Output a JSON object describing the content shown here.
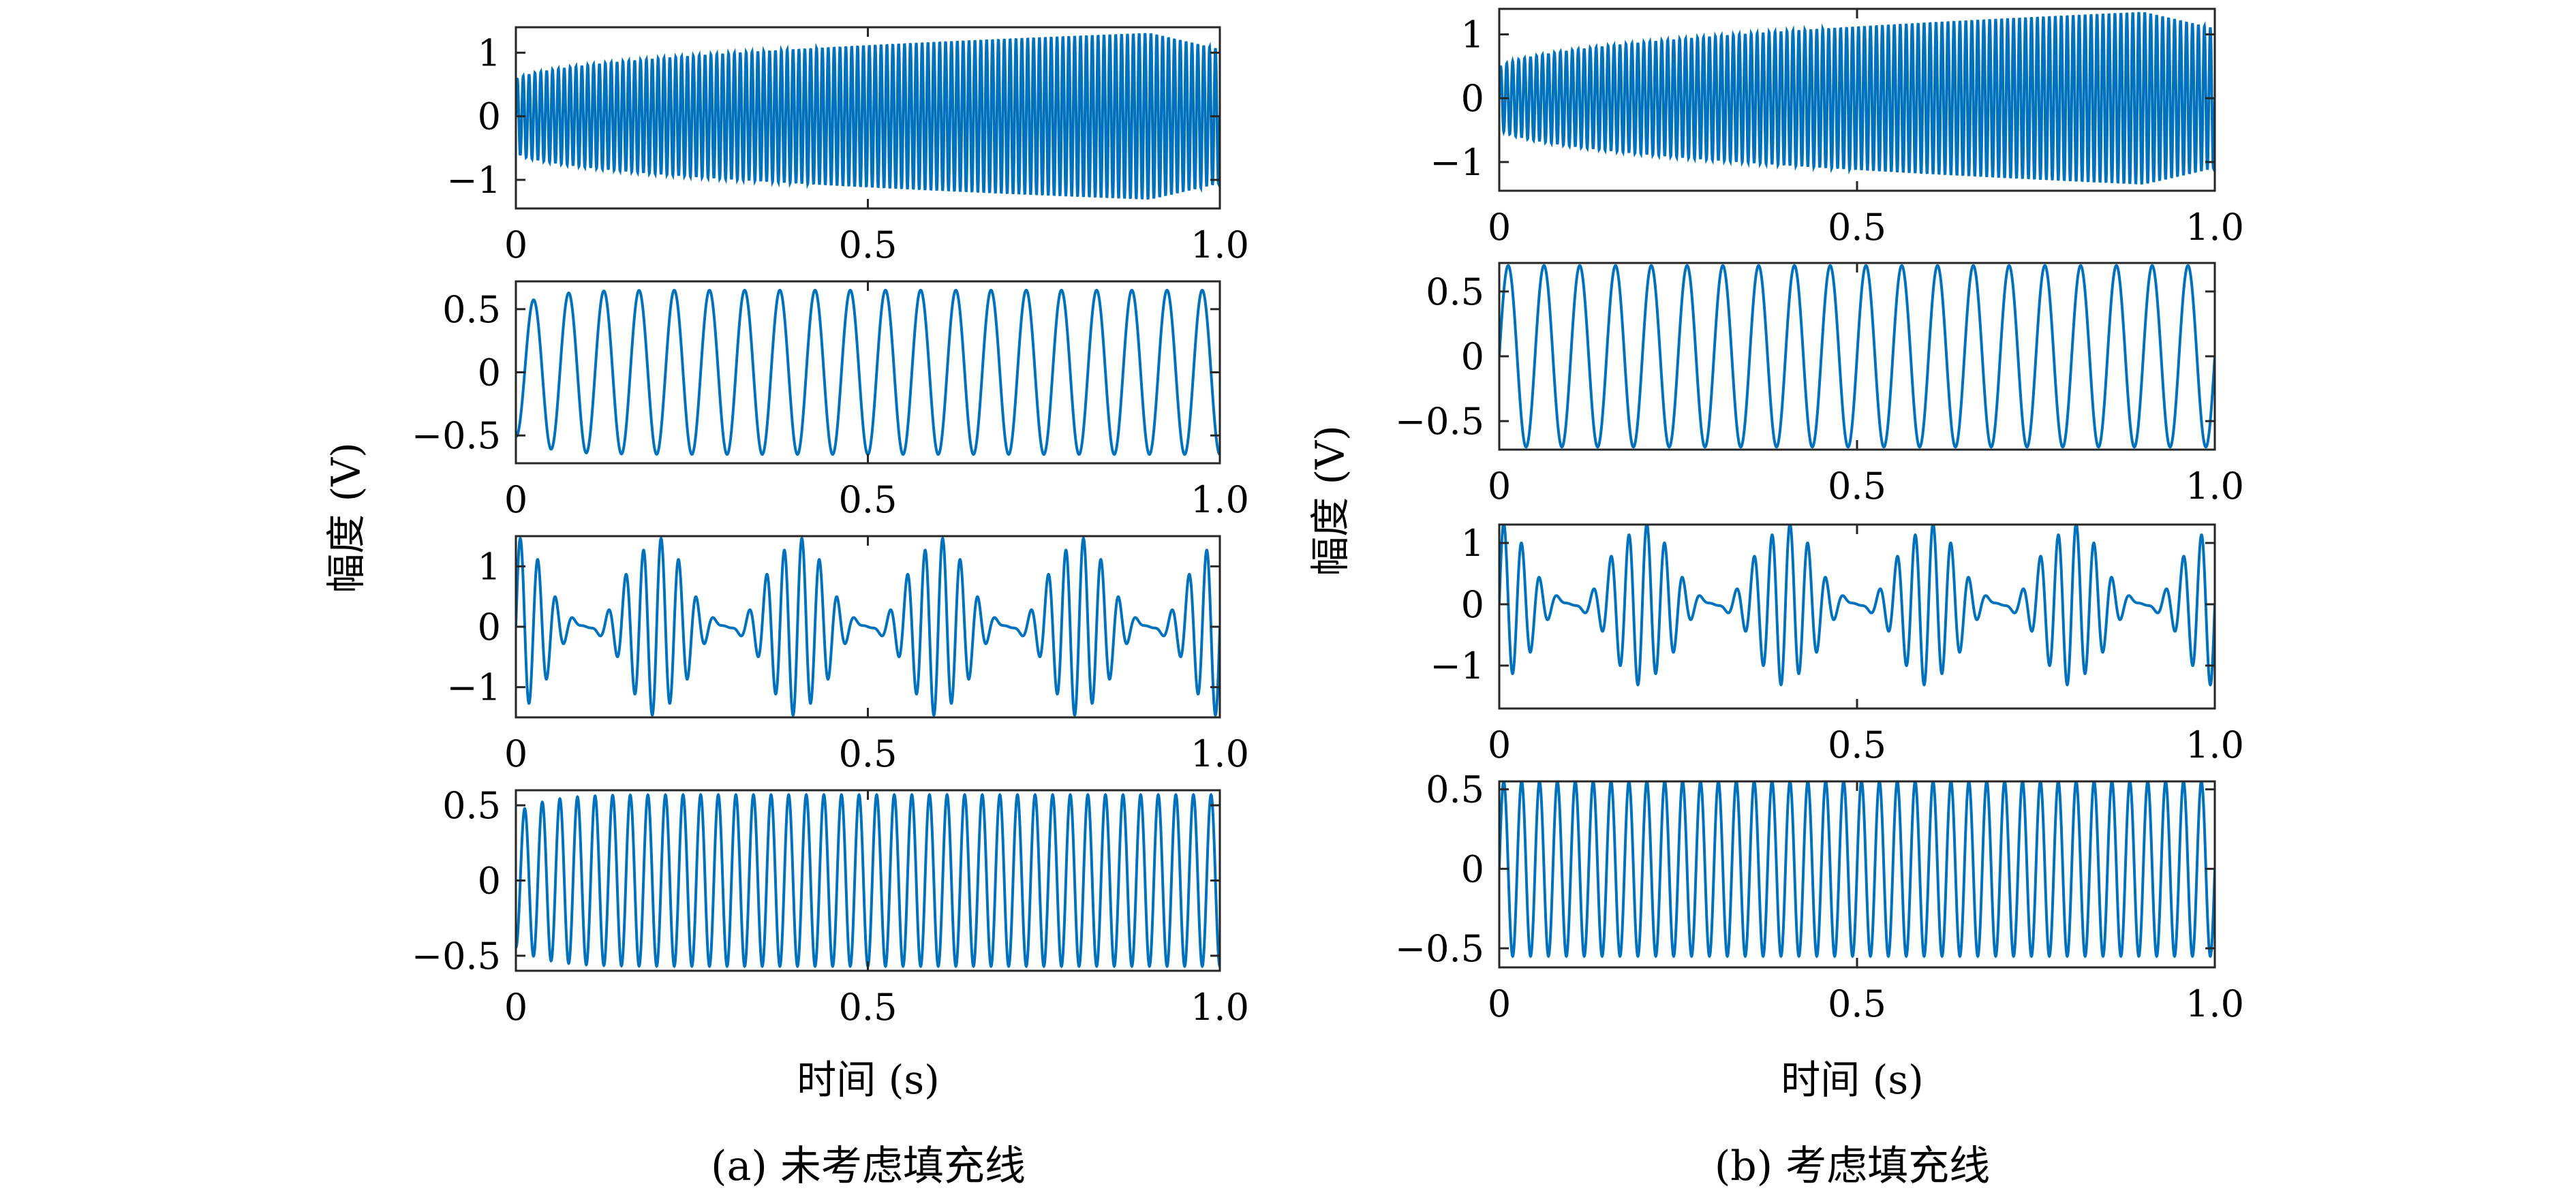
{
  "figure": {
    "panels": [
      {
        "id": "a",
        "caption": "(a) 未考虑填充线",
        "ylabel": "幅度 (V)",
        "xlabel": "时间 (s)"
      },
      {
        "id": "b",
        "caption": "(b) 考虑填充线",
        "ylabel": "幅度 (V)",
        "xlabel": "时间 (s)"
      }
    ]
  },
  "chart_data": [
    {
      "type": "line",
      "panel": "a",
      "subplot": 1,
      "description": "growing-amplitude high-frequency oscillation",
      "x_range": [
        0,
        1.0
      ],
      "ylim": [
        -1.45,
        1.4
      ],
      "xticks": [
        "0",
        "0.5",
        "1.0"
      ],
      "yticks": [
        "1",
        "0",
        "−1"
      ],
      "ytick_values": [
        1,
        0,
        -1
      ],
      "color": "#0072bd",
      "signal": {
        "kind": "chirp_growth",
        "frequency_hz": 120,
        "amplitude_start": 0.55,
        "amplitude_end": 1.35
      }
    },
    {
      "type": "line",
      "panel": "a",
      "subplot": 2,
      "x_range": [
        0,
        1.0
      ],
      "ylim": [
        -0.72,
        0.72
      ],
      "xticks": [
        "0",
        "0.5",
        "1.0"
      ],
      "yticks": [
        "0.5",
        "0",
        "−0.5"
      ],
      "ytick_values": [
        0.5,
        0,
        -0.5
      ],
      "color": "#0072bd",
      "signal": {
        "kind": "sine",
        "frequency_hz": 20,
        "amplitude": 0.65,
        "settling": true
      }
    },
    {
      "type": "line",
      "panel": "a",
      "subplot": 3,
      "x_range": [
        0,
        1.0
      ],
      "ylim": [
        -1.5,
        1.5
      ],
      "xticks": [
        "0",
        "0.5",
        "1.0"
      ],
      "yticks": [
        "1",
        "0",
        "−1"
      ],
      "ytick_values": [
        1,
        0,
        -1
      ],
      "color": "#0072bd",
      "signal": {
        "kind": "beat",
        "carrier_hz": 40,
        "envelope_hz": 5,
        "amplitude": 1.45
      }
    },
    {
      "type": "line",
      "panel": "a",
      "subplot": 4,
      "x_range": [
        0,
        1.0
      ],
      "ylim": [
        -0.6,
        0.6
      ],
      "xticks": [
        "0",
        "0.5",
        "1.0"
      ],
      "yticks": [
        "0.5",
        "0",
        "−0.5"
      ],
      "ytick_values": [
        0.5,
        0,
        -0.5
      ],
      "color": "#0072bd",
      "signal": {
        "kind": "sine",
        "frequency_hz": 40,
        "amplitude": 0.57,
        "settling": true
      }
    },
    {
      "type": "line",
      "panel": "b",
      "subplot": 1,
      "x_range": [
        0,
        1.0
      ],
      "ylim": [
        -1.45,
        1.4
      ],
      "xticks": [
        "0",
        "0.5",
        "1.0"
      ],
      "yticks": [
        "1",
        "0",
        "−1"
      ],
      "ytick_values": [
        1,
        0,
        -1
      ],
      "color": "#0072bd",
      "signal": {
        "kind": "chirp_growth",
        "frequency_hz": 120,
        "amplitude_start": 0.45,
        "amplitude_end": 1.4
      }
    },
    {
      "type": "line",
      "panel": "b",
      "subplot": 2,
      "x_range": [
        0,
        1.0
      ],
      "ylim": [
        -0.72,
        0.72
      ],
      "xticks": [
        "0",
        "0.5",
        "1.0"
      ],
      "yticks": [
        "0.5",
        "0",
        "−0.5"
      ],
      "ytick_values": [
        0.5,
        0,
        -0.5
      ],
      "color": "#0072bd",
      "signal": {
        "kind": "sine",
        "frequency_hz": 20,
        "amplitude": 0.7,
        "settling": false
      }
    },
    {
      "type": "line",
      "panel": "b",
      "subplot": 3,
      "x_range": [
        0,
        1.0
      ],
      "ylim": [
        -1.7,
        1.3
      ],
      "xticks": [
        "0",
        "0.5",
        "1.0"
      ],
      "yticks": [
        "1",
        "0",
        "−1"
      ],
      "ytick_values": [
        1,
        0,
        -1
      ],
      "color": "#0072bd",
      "signal": {
        "kind": "beat",
        "carrier_hz": 40,
        "envelope_hz": 5,
        "amplitude": 1.3
      }
    },
    {
      "type": "line",
      "panel": "b",
      "subplot": 4,
      "x_range": [
        0,
        1.0
      ],
      "ylim": [
        -0.62,
        0.55
      ],
      "xticks": [
        "0",
        "0.5",
        "1.0"
      ],
      "yticks": [
        "0.5",
        "0",
        "−0.5"
      ],
      "ytick_values": [
        0.5,
        0,
        -0.5
      ],
      "color": "#0072bd",
      "signal": {
        "kind": "sine",
        "frequency_hz": 40,
        "amplitude": 0.55,
        "settling": false
      }
    }
  ]
}
